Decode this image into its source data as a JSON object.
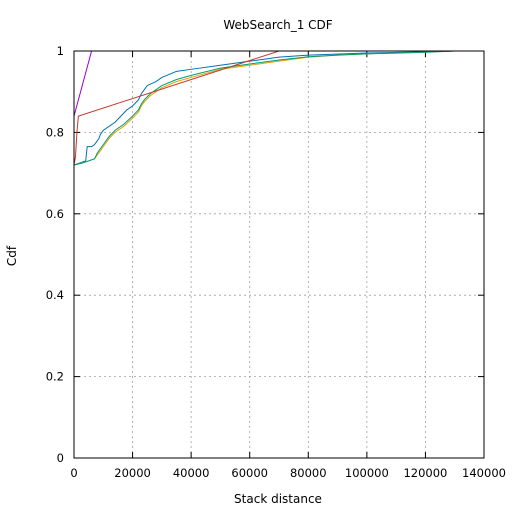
{
  "chart_data": {
    "type": "line",
    "title": "WebSearch_1 CDF",
    "xlabel": "Stack distance",
    "ylabel": "Cdf",
    "xlim": [
      0,
      140000
    ],
    "ylim": [
      0,
      1
    ],
    "xticks": [
      0,
      20000,
      40000,
      60000,
      80000,
      100000,
      120000,
      140000
    ],
    "yticks": [
      0,
      0.2,
      0.4,
      0.6,
      0.8,
      1
    ],
    "xtick_labels": [
      "0",
      "20000",
      "40000",
      "60000",
      "80000",
      "100000",
      "120000",
      "140000"
    ],
    "ytick_labels": [
      "0",
      "0.2",
      "0.4",
      "0.6",
      "0.8",
      "1"
    ],
    "grid": true,
    "legend": "none",
    "series": [
      {
        "color": "#9400d3",
        "x": [
          0,
          6000
        ],
        "y": [
          0.84,
          1.0
        ]
      },
      {
        "color": "#0072b2",
        "x": [
          0,
          2000,
          4000,
          4500,
          5000,
          6000,
          7000,
          8500,
          9000,
          10000,
          12000,
          14000,
          16000,
          18000,
          20000,
          22000,
          23000,
          24000,
          25000,
          28000,
          30000,
          35000,
          40000,
          50000,
          60000,
          70000,
          80000,
          100000,
          120000,
          130000
        ],
        "y": [
          0.72,
          0.725,
          0.73,
          0.765,
          0.765,
          0.765,
          0.77,
          0.785,
          0.795,
          0.805,
          0.815,
          0.825,
          0.84,
          0.855,
          0.865,
          0.88,
          0.895,
          0.905,
          0.915,
          0.925,
          0.935,
          0.95,
          0.955,
          0.965,
          0.975,
          0.985,
          0.99,
          0.995,
          0.998,
          1.0
        ]
      },
      {
        "color": "#e69f00",
        "x": [
          0,
          3000,
          7000,
          8000,
          10000,
          12000,
          14000,
          17000,
          20000,
          22000,
          23000,
          24000,
          26000,
          28000,
          30000,
          35000,
          40000,
          50000,
          60000,
          70000,
          80000,
          90000,
          100000,
          120000,
          130000
        ],
        "y": [
          0.72,
          0.725,
          0.735,
          0.745,
          0.765,
          0.785,
          0.8,
          0.815,
          0.835,
          0.85,
          0.865,
          0.875,
          0.89,
          0.9,
          0.91,
          0.925,
          0.935,
          0.955,
          0.965,
          0.975,
          0.985,
          0.99,
          0.993,
          0.997,
          1.0
        ]
      },
      {
        "color": "#009e73",
        "x": [
          0,
          3000,
          7000,
          8000,
          10000,
          12000,
          14000,
          17000,
          20000,
          22000,
          23000,
          24000,
          26000,
          28000,
          30000,
          35000,
          40000,
          50000,
          60000,
          70000,
          80000,
          90000,
          100000,
          120000,
          130000
        ],
        "y": [
          0.72,
          0.725,
          0.735,
          0.75,
          0.77,
          0.79,
          0.805,
          0.82,
          0.84,
          0.855,
          0.87,
          0.88,
          0.895,
          0.905,
          0.915,
          0.93,
          0.94,
          0.958,
          0.968,
          0.978,
          0.986,
          0.99,
          0.993,
          0.997,
          1.0
        ]
      },
      {
        "color": "#c0392b",
        "x": [
          0,
          500,
          1000,
          1500,
          70000
        ],
        "y": [
          0.72,
          0.74,
          0.8,
          0.84,
          1.0
        ]
      }
    ]
  }
}
